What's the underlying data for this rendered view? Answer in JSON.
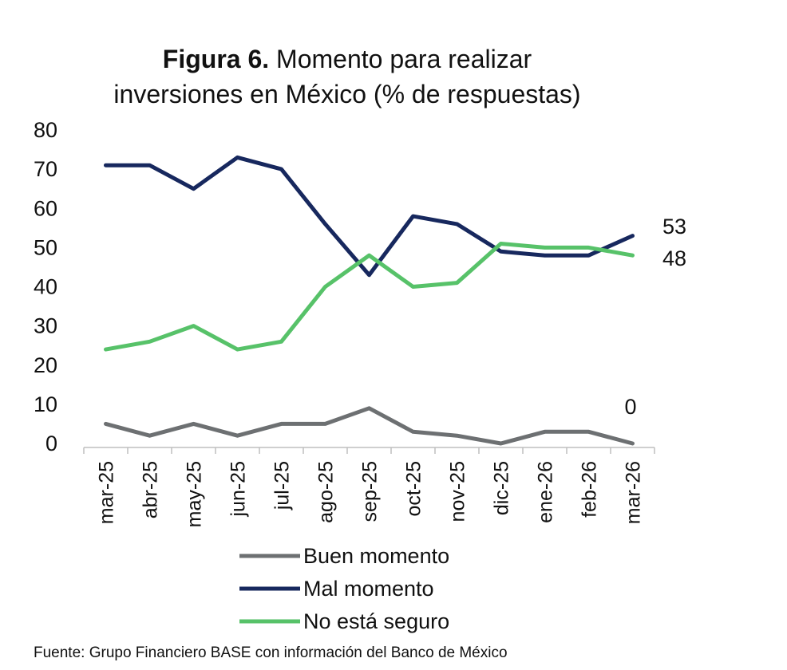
{
  "title_bold": "Figura 6.",
  "title_rest": "Momento para realizar",
  "title_line2": "inversiones en México (% de respuestas)",
  "source": "Fuente: Grupo Financiero BASE con información del Banco de México",
  "colors": {
    "buen": "#6d7072",
    "mal": "#17285e",
    "no": "#57c269",
    "axis": "#bfbfbf"
  },
  "chart_data": {
    "type": "line",
    "categories": [
      "mar-25",
      "abr-25",
      "may-25",
      "jun-25",
      "jul-25",
      "ago-25",
      "sep-25",
      "oct-25",
      "nov-25",
      "dic-25",
      "ene-26",
      "feb-26",
      "mar-26"
    ],
    "ylim": [
      0,
      80
    ],
    "yticks": [
      0,
      10,
      20,
      30,
      40,
      50,
      60,
      70,
      80
    ],
    "grid": false,
    "legend_position": "bottom",
    "series": [
      {
        "name": "Buen momento",
        "key": "buen",
        "values": [
          5,
          2,
          5,
          2,
          5,
          5,
          9,
          3,
          2,
          0,
          3,
          3,
          0
        ],
        "end_label": "0"
      },
      {
        "name": "Mal momento",
        "key": "mal",
        "values": [
          71,
          71,
          65,
          73,
          70,
          56,
          43,
          58,
          56,
          49,
          48,
          48,
          53
        ],
        "end_label": "53"
      },
      {
        "name": "No está seguro",
        "key": "no",
        "values": [
          24,
          26,
          30,
          24,
          26,
          40,
          48,
          40,
          41,
          51,
          50,
          50,
          48
        ],
        "end_label": "48"
      }
    ]
  }
}
